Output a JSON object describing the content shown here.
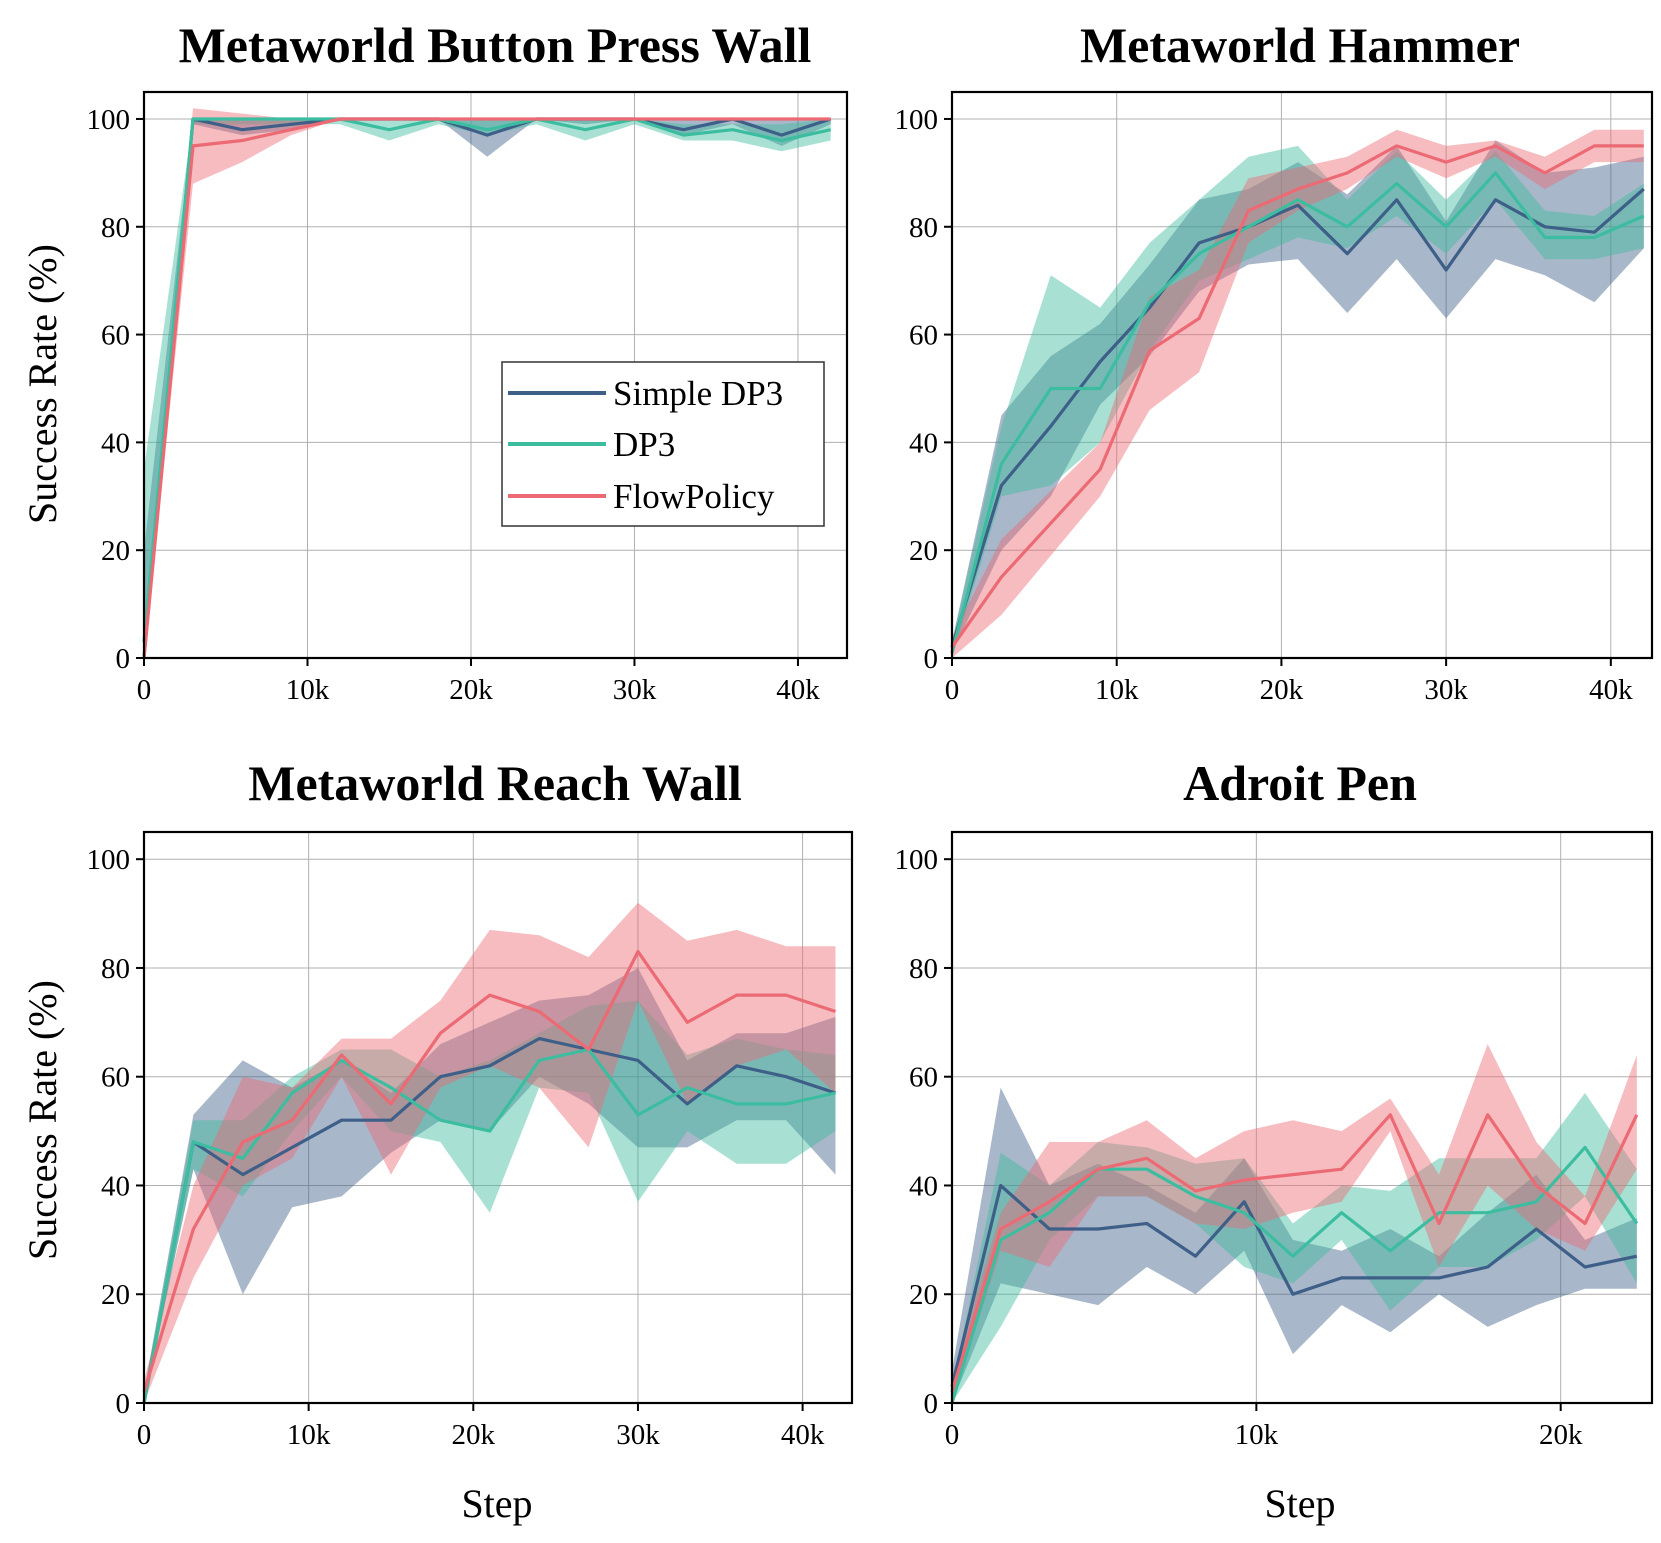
{
  "figure": {
    "ylabel": "Success Rate (%)",
    "xlabel": "Step"
  },
  "legend": {
    "location": "center-right of first panel",
    "entries": [
      "Simple DP3",
      "DP3",
      "FlowPolicy"
    ]
  },
  "colors": {
    "Simple DP3": "#3d5f88",
    "DP3": "#3dbda0",
    "FlowPolicy": "#ec6a73"
  },
  "chart_data": [
    {
      "type": "line",
      "title": "Metaworld Button Press Wall",
      "xlabel": "",
      "ylabel": "Success Rate (%)",
      "xlim": [
        0,
        43000
      ],
      "ylim": [
        0,
        105
      ],
      "xticks": [
        0,
        10000,
        20000,
        30000,
        40000
      ],
      "xtick_labels": [
        "0",
        "10k",
        "20k",
        "30k",
        "40k"
      ],
      "yticks": [
        0,
        20,
        40,
        60,
        80,
        100
      ],
      "grid": true,
      "x": [
        0,
        3000,
        6000,
        9000,
        12000,
        15000,
        18000,
        21000,
        24000,
        27000,
        30000,
        33000,
        36000,
        39000,
        42000
      ],
      "series": [
        {
          "name": "Simple DP3",
          "values": [
            0,
            100,
            98,
            99,
            100,
            100,
            100,
            97,
            100,
            100,
            100,
            98,
            100,
            97,
            100
          ],
          "lower": [
            0,
            99,
            97,
            98,
            100,
            100,
            100,
            93,
            100,
            99,
            100,
            97,
            99,
            95,
            99
          ],
          "upper": [
            20,
            100,
            100,
            100,
            100,
            100,
            100,
            100,
            100,
            100,
            100,
            100,
            100,
            100,
            100
          ]
        },
        {
          "name": "DP3",
          "values": [
            3,
            100,
            100,
            100,
            100,
            98,
            100,
            98,
            100,
            98,
            100,
            97,
            98,
            96,
            98
          ],
          "lower": [
            0,
            99,
            99,
            99,
            99,
            96,
            99,
            97,
            99,
            96,
            99,
            96,
            96,
            94,
            96
          ],
          "upper": [
            35,
            100,
            100,
            100,
            100,
            100,
            100,
            100,
            100,
            100,
            100,
            99,
            99,
            99,
            100
          ]
        },
        {
          "name": "FlowPolicy",
          "values": [
            0,
            95,
            96,
            98,
            100,
            100,
            100,
            100,
            100,
            100,
            100,
            100,
            100,
            100,
            100
          ],
          "lower": [
            0,
            88,
            92,
            97,
            100,
            100,
            100,
            100,
            100,
            100,
            100,
            100,
            100,
            100,
            100
          ],
          "upper": [
            2,
            102,
            101,
            100,
            100,
            100,
            100,
            100,
            100,
            100,
            100,
            100,
            100,
            100,
            100
          ]
        }
      ]
    },
    {
      "type": "line",
      "title": "Metaworld Hammer",
      "xlabel": "",
      "ylabel": "",
      "xlim": [
        0,
        42500
      ],
      "ylim": [
        0,
        105
      ],
      "xticks": [
        0,
        10000,
        20000,
        30000,
        40000
      ],
      "xtick_labels": [
        "0",
        "10k",
        "20k",
        "30k",
        "40k"
      ],
      "yticks": [
        0,
        20,
        40,
        60,
        80,
        100
      ],
      "grid": true,
      "x": [
        0,
        3000,
        6000,
        9000,
        12000,
        15000,
        18000,
        21000,
        24000,
        27000,
        30000,
        33000,
        36000,
        39000,
        42000
      ],
      "series": [
        {
          "name": "Simple DP3",
          "values": [
            2,
            32,
            43,
            55,
            65,
            77,
            80,
            84,
            75,
            85,
            72,
            85,
            80,
            79,
            87
          ],
          "lower": [
            1,
            20,
            30,
            47,
            56,
            68,
            73,
            74,
            64,
            74,
            63,
            74,
            71,
            66,
            76
          ],
          "upper": [
            3,
            45,
            56,
            62,
            73,
            85,
            87,
            92,
            86,
            95,
            81,
            96,
            90,
            91,
            93
          ]
        },
        {
          "name": "DP3",
          "values": [
            1,
            36,
            50,
            50,
            66,
            75,
            80,
            85,
            80,
            88,
            80,
            90,
            78,
            78,
            82
          ],
          "lower": [
            0,
            30,
            32,
            40,
            57,
            70,
            74,
            78,
            76,
            82,
            75,
            85,
            74,
            74,
            76
          ],
          "upper": [
            3,
            43,
            71,
            65,
            77,
            85,
            93,
            95,
            85,
            94,
            85,
            94,
            83,
            82,
            88
          ]
        },
        {
          "name": "FlowPolicy",
          "values": [
            2,
            15,
            25,
            35,
            57,
            63,
            83,
            87,
            90,
            95,
            92,
            95,
            90,
            95,
            95
          ],
          "lower": [
            0,
            8,
            19,
            30,
            46,
            53,
            77,
            83,
            87,
            93,
            89,
            93,
            87,
            92,
            92
          ],
          "upper": [
            4,
            22,
            31,
            40,
            67,
            72,
            89,
            91,
            93,
            98,
            95,
            96,
            93,
            98,
            98
          ]
        }
      ]
    },
    {
      "type": "line",
      "title": "Metaworld Reach Wall",
      "xlabel": "Step",
      "ylabel": "Success Rate (%)",
      "xlim": [
        0,
        43000
      ],
      "ylim": [
        0,
        105
      ],
      "xticks": [
        0,
        10000,
        20000,
        30000,
        40000
      ],
      "xtick_labels": [
        "0",
        "10k",
        "20k",
        "30k",
        "40k"
      ],
      "yticks": [
        0,
        20,
        40,
        60,
        80,
        100
      ],
      "grid": true,
      "x": [
        0,
        3000,
        6000,
        9000,
        12000,
        15000,
        18000,
        21000,
        24000,
        27000,
        30000,
        33000,
        36000,
        39000,
        42000
      ],
      "series": [
        {
          "name": "Simple DP3",
          "values": [
            0,
            48,
            42,
            47,
            52,
            52,
            60,
            62,
            67,
            65,
            63,
            55,
            62,
            60,
            57
          ],
          "lower": [
            0,
            43,
            20,
            36,
            38,
            46,
            52,
            50,
            60,
            55,
            47,
            47,
            52,
            52,
            42
          ],
          "upper": [
            2,
            53,
            63,
            58,
            63,
            57,
            66,
            70,
            74,
            75,
            80,
            63,
            68,
            68,
            71
          ]
        },
        {
          "name": "DP3",
          "values": [
            0,
            48,
            45,
            57,
            63,
            58,
            52,
            50,
            63,
            65,
            53,
            58,
            55,
            55,
            57
          ],
          "lower": [
            0,
            43,
            38,
            50,
            60,
            50,
            48,
            35,
            58,
            57,
            37,
            50,
            44,
            44,
            50
          ],
          "upper": [
            2,
            52,
            52,
            60,
            65,
            65,
            60,
            63,
            68,
            73,
            74,
            64,
            67,
            65,
            64
          ]
        },
        {
          "name": "FlowPolicy",
          "values": [
            2,
            32,
            48,
            52,
            64,
            55,
            68,
            75,
            72,
            65,
            83,
            70,
            75,
            75,
            72
          ],
          "lower": [
            0,
            23,
            40,
            45,
            60,
            42,
            58,
            62,
            58,
            47,
            74,
            55,
            62,
            65,
            57
          ],
          "upper": [
            4,
            40,
            60,
            58,
            67,
            67,
            74,
            87,
            86,
            82,
            92,
            85,
            87,
            84,
            84
          ]
        }
      ]
    },
    {
      "type": "line",
      "title": "Adroit Pen",
      "xlabel": "Step",
      "ylabel": "",
      "xlim": [
        0,
        23000
      ],
      "ylim": [
        0,
        105
      ],
      "xticks": [
        0,
        10000,
        20000
      ],
      "xtick_labels": [
        "0",
        "10k",
        "20k"
      ],
      "yticks": [
        0,
        20,
        40,
        60,
        80,
        100
      ],
      "grid": true,
      "x": [
        0,
        1600,
        3200,
        4800,
        6400,
        8000,
        9600,
        11200,
        12800,
        14400,
        16000,
        17600,
        19200,
        20800,
        22500
      ],
      "series": [
        {
          "name": "Simple DP3",
          "values": [
            3,
            40,
            32,
            32,
            33,
            27,
            37,
            20,
            23,
            23,
            23,
            25,
            32,
            25,
            27
          ],
          "lower": [
            0,
            22,
            20,
            18,
            25,
            20,
            28,
            9,
            18,
            13,
            20,
            14,
            18,
            21,
            21
          ],
          "upper": [
            6,
            58,
            40,
            44,
            40,
            35,
            45,
            30,
            28,
            32,
            27,
            35,
            42,
            30,
            34
          ]
        },
        {
          "name": "DP3",
          "values": [
            0,
            30,
            35,
            43,
            43,
            38,
            35,
            27,
            35,
            28,
            35,
            35,
            37,
            47,
            33
          ],
          "lower": [
            0,
            14,
            30,
            38,
            38,
            33,
            25,
            22,
            30,
            17,
            25,
            25,
            30,
            38,
            22
          ],
          "upper": [
            3,
            46,
            40,
            48,
            47,
            44,
            45,
            33,
            40,
            39,
            45,
            45,
            45,
            57,
            43
          ]
        },
        {
          "name": "FlowPolicy",
          "values": [
            2,
            32,
            37,
            43,
            45,
            39,
            41,
            42,
            43,
            53,
            33,
            53,
            40,
            33,
            53
          ],
          "lower": [
            0,
            28,
            25,
            38,
            38,
            33,
            32,
            35,
            37,
            50,
            25,
            40,
            32,
            28,
            43
          ],
          "upper": [
            5,
            35,
            48,
            48,
            52,
            45,
            50,
            52,
            50,
            56,
            42,
            66,
            48,
            38,
            64
          ]
        }
      ]
    }
  ]
}
